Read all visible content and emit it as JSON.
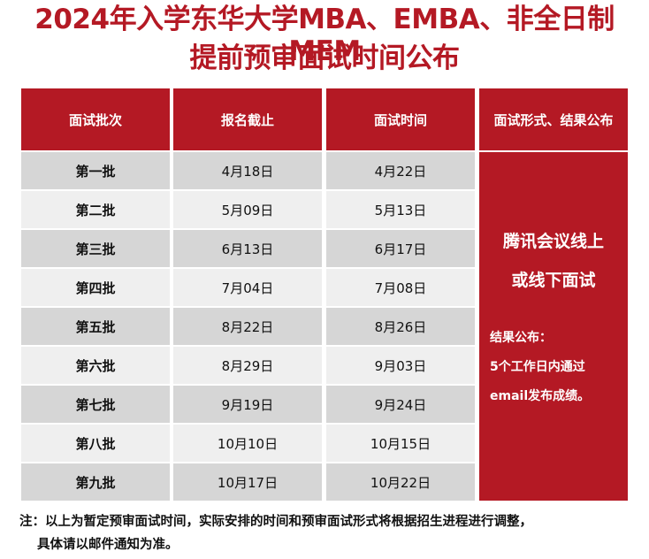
{
  "title_line1": "2024年入学东华大学MBA、EMBA、非全日制MEM",
  "title_line2": "提前预审面试时间公布",
  "table": {
    "headers": [
      "面试批次",
      "报名截止",
      "面试时间",
      "面试形式、结果公布"
    ],
    "rows": [
      {
        "batch": "第一批",
        "deadline": "4月18日",
        "interview": "4月22日"
      },
      {
        "batch": "第二批",
        "deadline": "5月09日",
        "interview": "5月13日"
      },
      {
        "batch": "第三批",
        "deadline": "6月13日",
        "interview": "6月17日"
      },
      {
        "batch": "第四批",
        "deadline": "7月04日",
        "interview": "7月08日"
      },
      {
        "batch": "第五批",
        "deadline": "8月22日",
        "interview": "8月26日"
      },
      {
        "batch": "第六批",
        "deadline": "8月29日",
        "interview": "9月03日"
      },
      {
        "batch": "第七批",
        "deadline": "9月19日",
        "interview": "9月24日"
      },
      {
        "batch": "第八批",
        "deadline": "10月10日",
        "interview": "10月15日"
      },
      {
        "batch": "第九批",
        "deadline": "10月17日",
        "interview": "10月22日"
      }
    ],
    "merged": {
      "line1": "腾讯会议线上",
      "line2": "或线下面试",
      "line3": "结果公布：",
      "line4": "5个工作日内通过",
      "line5": "email发布成绩。"
    }
  },
  "note_line1": "注：以上为暂定预审面试时间，实际安排的时间和预审面试形式将根据招生进程进行调整，",
  "note_line2": "具体请以邮件通知为准。",
  "colors": {
    "accent": "#b41924",
    "row_dark": "#d6d6d6",
    "row_light": "#efefef"
  }
}
